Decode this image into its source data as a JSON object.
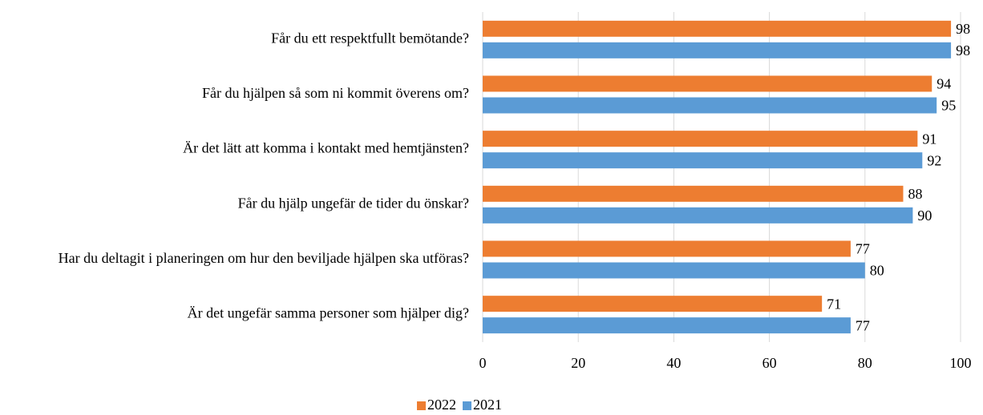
{
  "chart_data": {
    "type": "bar",
    "orientation": "horizontal",
    "categories": [
      "Får du ett respektfullt bemötande?",
      "Får du hjälpen så som ni kommit överens om?",
      "Är det lätt att komma i kontakt med hemtjänsten?",
      "Får du hjälp ungefär de tider du önskar?",
      "Har du deltagit i planeringen om hur den beviljade hjälpen ska utföras?",
      "Är det ungefär samma personer som hjälper dig?"
    ],
    "series": [
      {
        "name": "2022",
        "color": "#ed7d31",
        "values": [
          98,
          94,
          91,
          88,
          77,
          71
        ]
      },
      {
        "name": "2021",
        "color": "#5b9bd5",
        "values": [
          98,
          95,
          92,
          90,
          80,
          77
        ]
      }
    ],
    "xlim": [
      0,
      100
    ],
    "xticks": [
      0,
      20,
      40,
      60,
      80,
      100
    ],
    "grid": true,
    "legend": "bottom"
  }
}
